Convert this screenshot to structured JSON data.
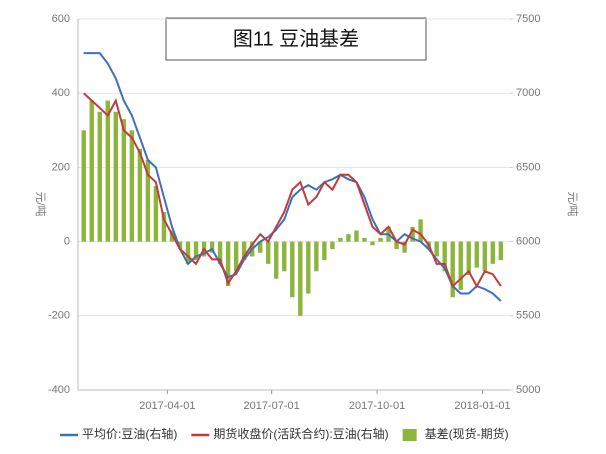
{
  "chart_data": {
    "type": "bar",
    "title": "图11 豆油基差",
    "y_label": "元/吨",
    "y2_label": "元/吨",
    "x": [
      "2017-01-18",
      "2017-01-25",
      "2017-02-01",
      "2017-02-08",
      "2017-02-15",
      "2017-02-22",
      "2017-03-01",
      "2017-03-08",
      "2017-03-15",
      "2017-03-22",
      "2017-03-29",
      "2017-04-05",
      "2017-04-12",
      "2017-04-19",
      "2017-04-26",
      "2017-05-03",
      "2017-05-10",
      "2017-05-17",
      "2017-05-24",
      "2017-05-31",
      "2017-06-07",
      "2017-06-14",
      "2017-06-21",
      "2017-06-28",
      "2017-07-05",
      "2017-07-12",
      "2017-07-19",
      "2017-07-26",
      "2017-08-02",
      "2017-08-09",
      "2017-08-16",
      "2017-08-23",
      "2017-08-30",
      "2017-09-06",
      "2017-09-13",
      "2017-09-20",
      "2017-09-27",
      "2017-10-04",
      "2017-10-11",
      "2017-10-18",
      "2017-10-25",
      "2017-11-01",
      "2017-11-08",
      "2017-11-15",
      "2017-11-22",
      "2017-11-29",
      "2017-12-06",
      "2017-12-13",
      "2017-12-20",
      "2017-12-27",
      "2018-01-03",
      "2018-01-10",
      "2018-01-17"
    ],
    "series": [
      {
        "name": "平均价:豆油(右轴)",
        "type": "line",
        "axis": "y2",
        "color": "#3b72b8",
        "values": [
          7270,
          7270,
          7270,
          7200,
          7100,
          6950,
          6850,
          6700,
          6550,
          6500,
          6300,
          6100,
          5950,
          5850,
          5900,
          5920,
          5950,
          5850,
          5760,
          5780,
          5880,
          5950,
          6000,
          6030,
          6080,
          6150,
          6300,
          6350,
          6380,
          6350,
          6400,
          6420,
          6450,
          6420,
          6400,
          6300,
          6150,
          6050,
          6050,
          6000,
          6050,
          6020,
          6000,
          5950,
          5880,
          5820,
          5700,
          5650,
          5650,
          5700,
          5680,
          5650,
          5600
        ]
      },
      {
        "name": "期货收盘价(活跃合约):豆油(右轴)",
        "type": "line",
        "axis": "y2",
        "color": "#c23b3d",
        "values": [
          7000,
          6950,
          6900,
          6850,
          6950,
          6750,
          6700,
          6600,
          6450,
          6400,
          6150,
          6050,
          5950,
          5900,
          5850,
          5950,
          5880,
          5880,
          5720,
          5800,
          5900,
          5980,
          6050,
          6000,
          6100,
          6200,
          6350,
          6400,
          6250,
          6300,
          6400,
          6350,
          6450,
          6450,
          6400,
          6250,
          6100,
          6050,
          6100,
          6000,
          5980,
          6080,
          6050,
          5980,
          5850,
          5850,
          5700,
          5750,
          5800,
          5700,
          5800,
          5780,
          5700
        ]
      },
      {
        "name": "基差(现货-期货)",
        "type": "bar",
        "color": "#8db53c",
        "values": [
          300,
          380,
          350,
          380,
          350,
          330,
          300,
          250,
          220,
          150,
          80,
          30,
          -20,
          -60,
          -50,
          -40,
          -30,
          -60,
          -120,
          -80,
          -50,
          -40,
          -30,
          -60,
          -100,
          -80,
          -150,
          -200,
          -140,
          -80,
          -50,
          -20,
          10,
          20,
          30,
          10,
          -10,
          10,
          40,
          -20,
          -30,
          40,
          60,
          -20,
          -40,
          -80,
          -150,
          -130,
          -90,
          -70,
          -80,
          -60,
          -50
        ]
      }
    ],
    "xlim": [
      "2017-01-13",
      "2018-01-25"
    ],
    "xticks": [
      "2017-04-01",
      "2017-07-01",
      "2017-10-01",
      "2018-01-01"
    ],
    "ylim": [
      -400,
      600
    ],
    "yticks": [
      -400,
      -200,
      0,
      200,
      400,
      600
    ],
    "y2lim": [
      5000,
      7500
    ],
    "y2ticks": [
      5000,
      5500,
      6000,
      6500,
      7000,
      7500
    ],
    "grid": true
  }
}
